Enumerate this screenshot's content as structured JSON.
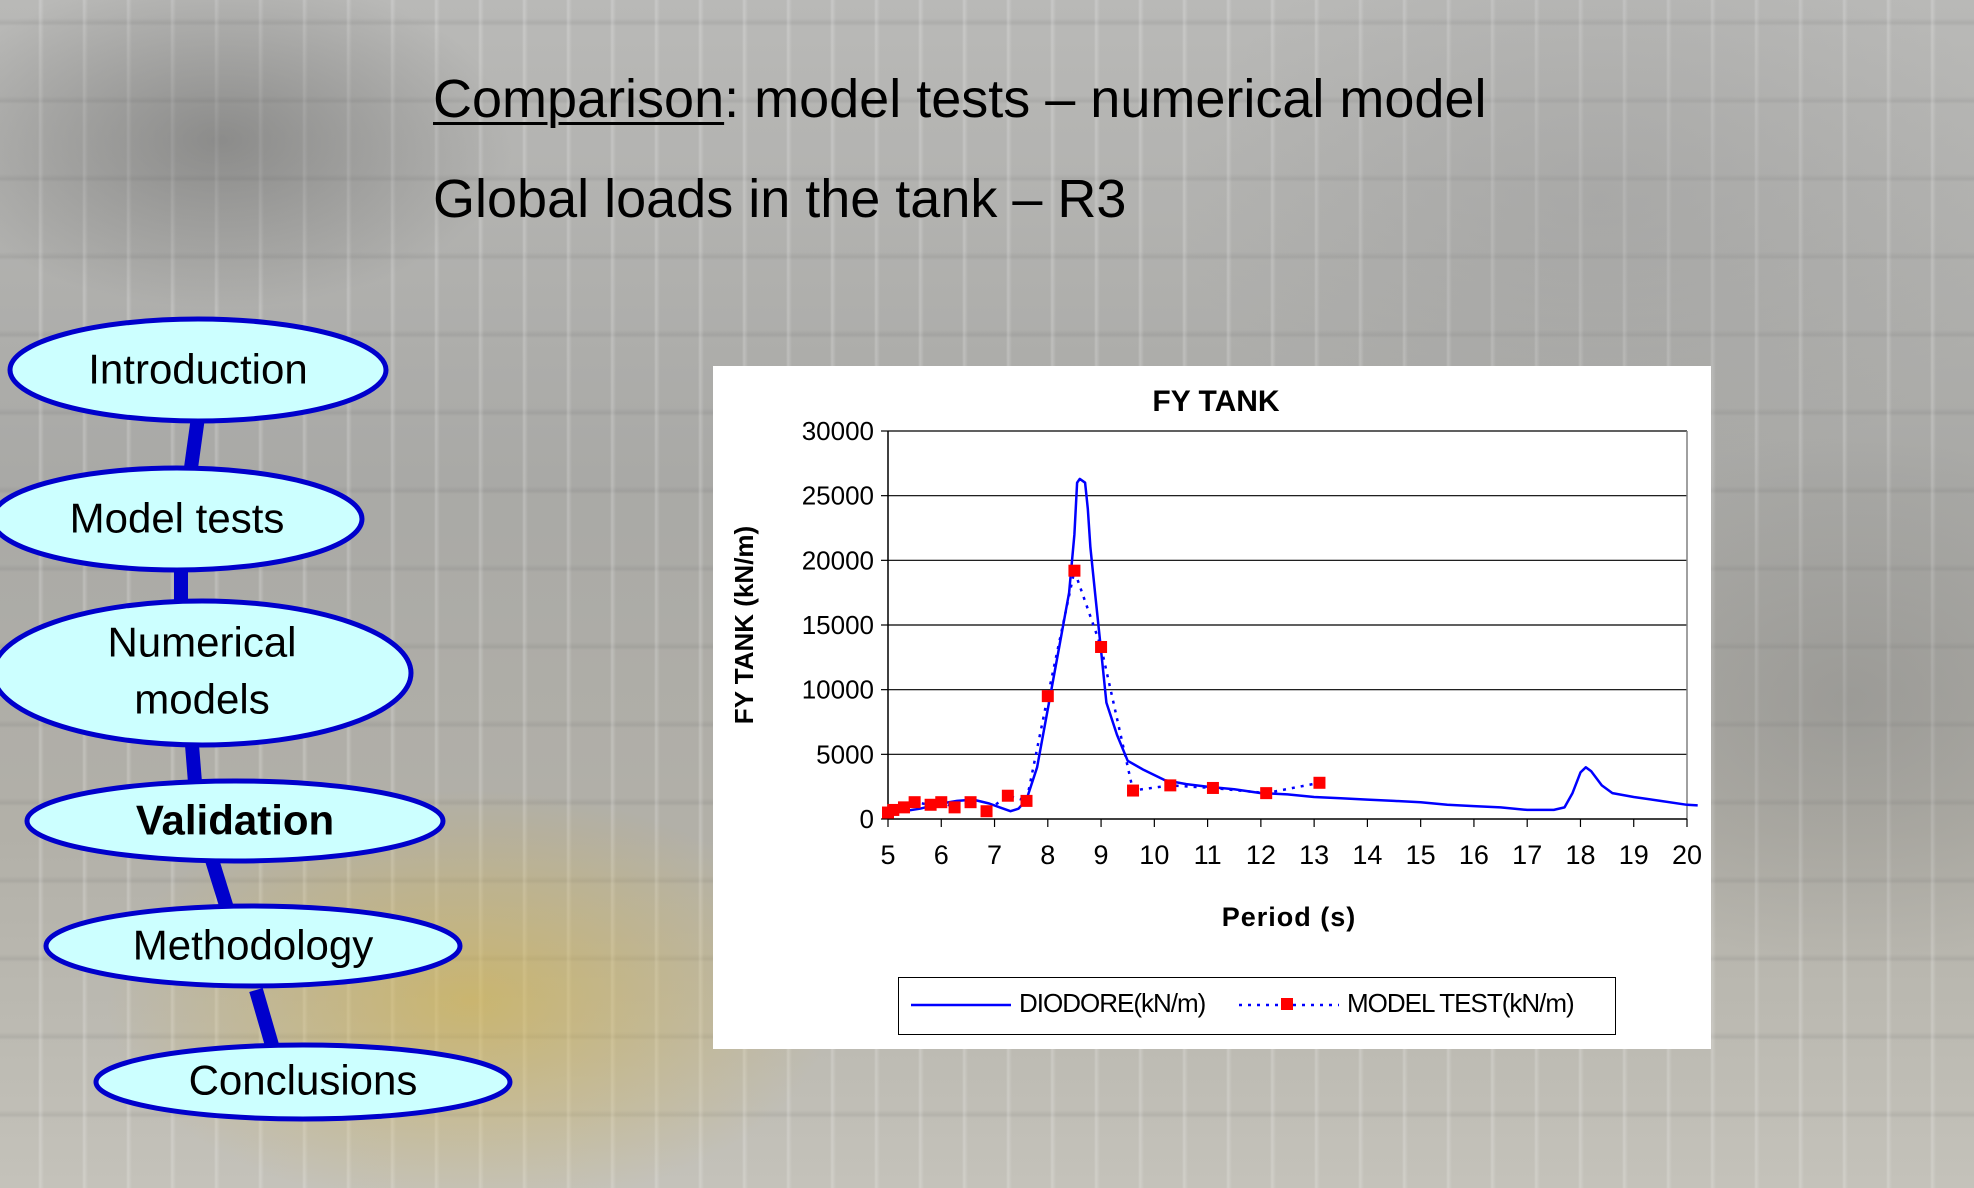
{
  "slide": {
    "title_underlined": "Comparison",
    "title_rest": ": model tests – numerical model",
    "subtitle": "Global loads in the tank – R3"
  },
  "nav": {
    "items": [
      {
        "label": "Introduction",
        "active": false
      },
      {
        "label": "Model tests",
        "active": false
      },
      {
        "label": "Numerical models",
        "active": false
      },
      {
        "label": "Validation",
        "active": true
      },
      {
        "label": "Methodology",
        "active": false
      },
      {
        "label": "Conclusions",
        "active": false
      }
    ],
    "fill_color": "#ccffff",
    "stroke_color": "#0000cc"
  },
  "chart_data": {
    "type": "line",
    "title": "FY TANK",
    "xlabel": "Period (s)",
    "ylabel": "FY TANK (kN/m)",
    "xlim": [
      5,
      20
    ],
    "ylim": [
      0,
      30000
    ],
    "x_ticks": [
      5,
      6,
      7,
      8,
      9,
      10,
      11,
      12,
      13,
      14,
      15,
      16,
      17,
      18,
      19,
      20
    ],
    "y_ticks": [
      0,
      5000,
      10000,
      15000,
      20000,
      25000,
      30000
    ],
    "grid": "horizontal",
    "legend_position": "bottom",
    "series": [
      {
        "name": "DIODORE(kN/m)",
        "style": "solid",
        "color": "#0000ff",
        "points": [
          [
            5.0,
            400
          ],
          [
            5.3,
            600
          ],
          [
            5.6,
            800
          ],
          [
            6.0,
            1200
          ],
          [
            6.3,
            1400
          ],
          [
            6.6,
            1500
          ],
          [
            6.9,
            1200
          ],
          [
            7.1,
            900
          ],
          [
            7.3,
            600
          ],
          [
            7.45,
            800
          ],
          [
            7.6,
            1500
          ],
          [
            7.8,
            4000
          ],
          [
            8.0,
            8500
          ],
          [
            8.2,
            13000
          ],
          [
            8.4,
            17500
          ],
          [
            8.5,
            22000
          ],
          [
            8.55,
            26000
          ],
          [
            8.6,
            26300
          ],
          [
            8.7,
            26000
          ],
          [
            8.75,
            24000
          ],
          [
            8.8,
            21000
          ],
          [
            8.9,
            17000
          ],
          [
            9.0,
            13000
          ],
          [
            9.1,
            9000
          ],
          [
            9.3,
            6500
          ],
          [
            9.5,
            4500
          ],
          [
            9.8,
            3800
          ],
          [
            10.2,
            3000
          ],
          [
            10.6,
            2700
          ],
          [
            11.0,
            2500
          ],
          [
            11.5,
            2300
          ],
          [
            12.0,
            2000
          ],
          [
            12.5,
            1900
          ],
          [
            13.0,
            1700
          ],
          [
            13.5,
            1600
          ],
          [
            14.0,
            1500
          ],
          [
            14.5,
            1400
          ],
          [
            15.0,
            1300
          ],
          [
            15.5,
            1100
          ],
          [
            16.0,
            1000
          ],
          [
            16.5,
            900
          ],
          [
            17.0,
            700
          ],
          [
            17.5,
            700
          ],
          [
            17.7,
            900
          ],
          [
            17.85,
            2000
          ],
          [
            18.0,
            3600
          ],
          [
            18.1,
            4000
          ],
          [
            18.2,
            3700
          ],
          [
            18.4,
            2600
          ],
          [
            18.6,
            2000
          ],
          [
            19.0,
            1700
          ],
          [
            19.5,
            1400
          ],
          [
            20.0,
            1100
          ],
          [
            20.2,
            1050
          ]
        ]
      },
      {
        "name": "MODEL TEST(kN/m)",
        "style": "dotted",
        "color": "#0000ff",
        "marker": "square",
        "marker_color": "#ff0000",
        "points": [
          [
            5.0,
            500
          ],
          [
            5.1,
            700
          ],
          [
            5.3,
            900
          ],
          [
            5.5,
            1300
          ],
          [
            5.8,
            1100
          ],
          [
            6.0,
            1300
          ],
          [
            6.25,
            900
          ],
          [
            6.55,
            1300
          ],
          [
            6.85,
            600
          ],
          [
            7.25,
            1800
          ],
          [
            7.6,
            1400
          ],
          [
            8.0,
            9500
          ],
          [
            8.5,
            19200
          ],
          [
            9.0,
            13300
          ],
          [
            9.6,
            2200
          ],
          [
            10.3,
            2600
          ],
          [
            11.1,
            2400
          ],
          [
            12.1,
            2000
          ],
          [
            13.1,
            2800
          ]
        ]
      }
    ]
  }
}
